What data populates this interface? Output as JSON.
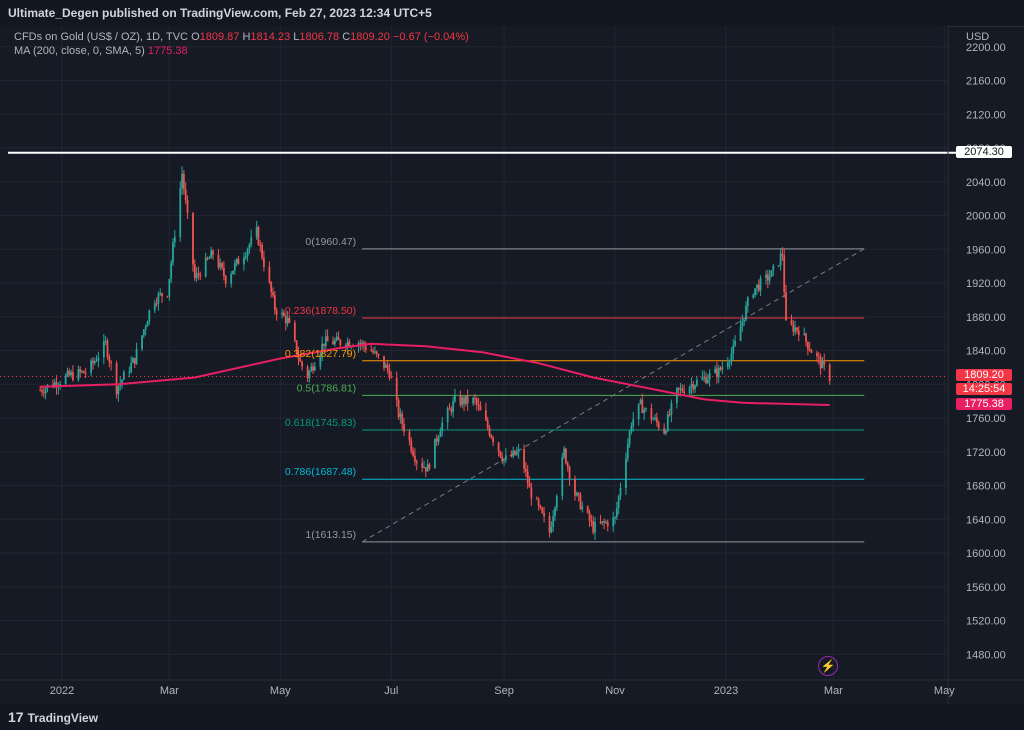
{
  "header": {
    "title": "Ultimate_Degen published on TradingView.com, Feb 27, 2023 12:34 UTC+5"
  },
  "legend": {
    "symbol": "CFDs on Gold (US$ / OZ), 1D, TVC",
    "open_label": "O",
    "open": "1809.87",
    "high_label": "H",
    "high": "1814.23",
    "low_label": "L",
    "low": "1806.78",
    "close_label": "C",
    "close": "1809.20",
    "change": "−0.67 (−0.04%)",
    "ma_label": "MA (200, close, 0, SMA, 5)",
    "ma_value": "1775.38"
  },
  "price_scale": {
    "currency": "USD",
    "ticks": [
      "2200.00",
      "2160.00",
      "2120.00",
      "2080.00",
      "2040.00",
      "2000.00",
      "1960.00",
      "1920.00",
      "1880.00",
      "1840.00",
      "1800.00",
      "1760.00",
      "1720.00",
      "1680.00",
      "1640.00",
      "1600.00",
      "1560.00",
      "1520.00",
      "1480.00"
    ],
    "tags": {
      "white_line": "2074.30",
      "last_price": "1809.20",
      "countdown": "14:25:54",
      "ma": "1775.38"
    }
  },
  "footer": {
    "logo_text": "TradingView",
    "logo_mark": "17"
  },
  "colors": {
    "background": "#161a25",
    "grid": "#232632",
    "up": "#26a69a",
    "down": "#ef5350",
    "ma": "#e91e63",
    "text": "#b2b5be",
    "white_line": "#ffffff"
  },
  "chart_data": {
    "type": "candlestick",
    "symbol": "CFDs on Gold (US$ / OZ)",
    "timeframe": "1D",
    "x_tick_labels": [
      "2022",
      "Mar",
      "May",
      "Jul",
      "Sep",
      "Nov",
      "2023",
      "Mar",
      "May"
    ],
    "y_range": [
      1440,
      2220
    ],
    "horizontal_level": 2074.3,
    "fib_levels": [
      {
        "ratio": "0",
        "price": 1960.47,
        "label": "0(1960.47)",
        "color": "#9598a1"
      },
      {
        "ratio": "0.236",
        "price": 1878.5,
        "label": "0.236(1878.50)",
        "color": "#f23645"
      },
      {
        "ratio": "0.382",
        "price": 1827.79,
        "label": "0.382(1827.79)",
        "color": "#ff9800"
      },
      {
        "ratio": "0.5",
        "price": 1786.81,
        "label": "0.5(1786.81)",
        "color": "#4caf50"
      },
      {
        "ratio": "0.618",
        "price": 1745.83,
        "label": "0.618(1745.83)",
        "color": "#089981"
      },
      {
        "ratio": "0.786",
        "price": 1687.48,
        "label": "0.786(1687.48)",
        "color": "#00bcd4"
      },
      {
        "ratio": "1",
        "price": 1613.15,
        "label": "1(1613.15)",
        "color": "#9598a1"
      }
    ],
    "price_path": [
      [
        "2021-12-20",
        1793
      ],
      [
        "2022-01-05",
        1810
      ],
      [
        "2022-01-15",
        1815
      ],
      [
        "2022-01-25",
        1848
      ],
      [
        "2022-01-31",
        1795
      ],
      [
        "2022-02-10",
        1830
      ],
      [
        "2022-02-20",
        1900
      ],
      [
        "2022-02-28",
        1910
      ],
      [
        "2022-03-08",
        2050
      ],
      [
        "2022-03-15",
        1925
      ],
      [
        "2022-03-25",
        1955
      ],
      [
        "2022-04-01",
        1925
      ],
      [
        "2022-04-11",
        1955
      ],
      [
        "2022-04-18",
        1980
      ],
      [
        "2022-04-28",
        1890
      ],
      [
        "2022-05-05",
        1875
      ],
      [
        "2022-05-12",
        1825
      ],
      [
        "2022-05-16",
        1810
      ],
      [
        "2022-05-25",
        1850
      ],
      [
        "2022-06-05",
        1850
      ],
      [
        "2022-06-13",
        1850
      ],
      [
        "2022-06-20",
        1840
      ],
      [
        "2022-06-30",
        1815
      ],
      [
        "2022-07-05",
        1765
      ],
      [
        "2022-07-15",
        1710
      ],
      [
        "2022-07-21",
        1700
      ],
      [
        "2022-07-28",
        1750
      ],
      [
        "2022-08-05",
        1780
      ],
      [
        "2022-08-16",
        1780
      ],
      [
        "2022-08-25",
        1740
      ],
      [
        "2022-09-01",
        1710
      ],
      [
        "2022-09-10",
        1720
      ],
      [
        "2022-09-15",
        1675
      ],
      [
        "2022-09-26",
        1625
      ],
      [
        "2022-10-04",
        1720
      ],
      [
        "2022-10-10",
        1670
      ],
      [
        "2022-10-20",
        1630
      ],
      [
        "2022-11-01",
        1640
      ],
      [
        "2022-11-04",
        1680
      ],
      [
        "2022-11-10",
        1755
      ],
      [
        "2022-11-15",
        1775
      ],
      [
        "2022-11-28",
        1745
      ],
      [
        "2022-12-05",
        1790
      ],
      [
        "2022-12-13",
        1800
      ],
      [
        "2022-12-28",
        1815
      ],
      [
        "2023-01-05",
        1840
      ],
      [
        "2023-01-15",
        1910
      ],
      [
        "2023-01-26",
        1930
      ],
      [
        "2023-02-01",
        1955
      ],
      [
        "2023-02-03",
        1870
      ],
      [
        "2023-02-10",
        1865
      ],
      [
        "2023-02-17",
        1840
      ],
      [
        "2023-02-27",
        1809
      ]
    ],
    "ma200_path": [
      [
        "2021-12-20",
        1797
      ],
      [
        "2022-02-01",
        1800
      ],
      [
        "2022-03-15",
        1808
      ],
      [
        "2022-04-30",
        1830
      ],
      [
        "2022-05-31",
        1842
      ],
      [
        "2022-06-20",
        1848
      ],
      [
        "2022-07-20",
        1845
      ],
      [
        "2022-08-20",
        1838
      ],
      [
        "2022-09-20",
        1825
      ],
      [
        "2022-10-20",
        1808
      ],
      [
        "2022-11-20",
        1795
      ],
      [
        "2022-12-20",
        1782
      ],
      [
        "2023-01-10",
        1778
      ],
      [
        "2023-02-27",
        1775.38
      ]
    ],
    "last_price": 1809.2,
    "ma_value": 1775.38
  }
}
